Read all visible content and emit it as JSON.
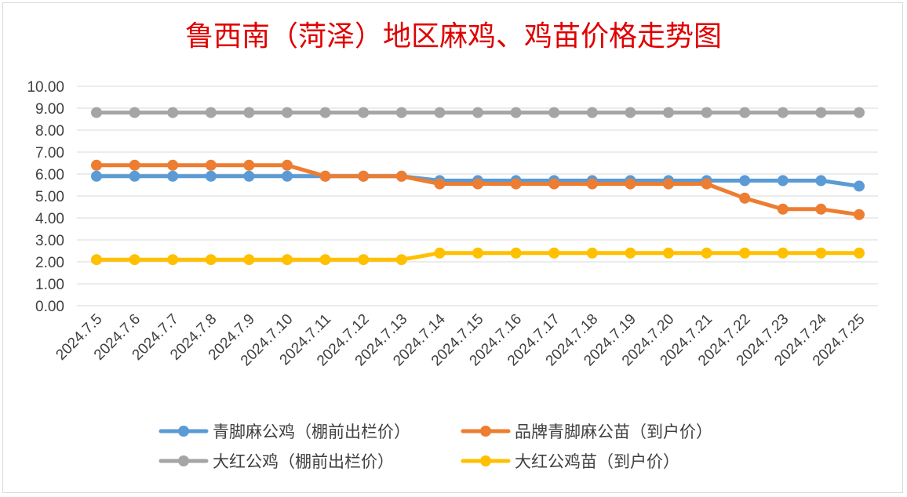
{
  "chart_data": {
    "type": "line",
    "title": "鲁西南（菏泽）地区麻鸡、鸡苗价格走势图",
    "xlabel": "",
    "ylabel": "",
    "ylim": [
      0,
      10
    ],
    "ytick_step": 1,
    "ytick_labels": [
      "0.00",
      "1.00",
      "2.00",
      "3.00",
      "4.00",
      "5.00",
      "6.00",
      "7.00",
      "8.00",
      "9.00",
      "10.00"
    ],
    "grid": true,
    "legend_position": "bottom",
    "categories": [
      "2024.7.5",
      "2024.7.6",
      "2024.7.7",
      "2024.7.8",
      "2024.7.9",
      "2024.7.10",
      "2024.7.11",
      "2024.7.12",
      "2024.7.13",
      "2024.7.14",
      "2024.7.15",
      "2024.7.16",
      "2024.7.17",
      "2024.7.18",
      "2024.7.19",
      "2024.7.20",
      "2024.7.21",
      "2024.7.22",
      "2024.7.23",
      "2024.7.24",
      "2024.7.25"
    ],
    "series": [
      {
        "name": "青脚麻公鸡（棚前出栏价）",
        "color": "#5b9bd5",
        "values": [
          5.9,
          5.9,
          5.9,
          5.9,
          5.9,
          5.9,
          5.9,
          5.9,
          5.9,
          5.7,
          5.7,
          5.7,
          5.7,
          5.7,
          5.7,
          5.7,
          5.7,
          5.7,
          5.7,
          5.7,
          5.45
        ]
      },
      {
        "name": "品牌青脚麻公苗（到户价）",
        "color": "#ed7d31",
        "values": [
          6.4,
          6.4,
          6.4,
          6.4,
          6.4,
          6.4,
          5.9,
          5.9,
          5.9,
          5.55,
          5.55,
          5.55,
          5.55,
          5.55,
          5.55,
          5.55,
          5.55,
          4.9,
          4.4,
          4.4,
          4.15
        ]
      },
      {
        "name": "大红公鸡（棚前出栏价）",
        "color": "#a5a5a5",
        "values": [
          8.8,
          8.8,
          8.8,
          8.8,
          8.8,
          8.8,
          8.8,
          8.8,
          8.8,
          8.8,
          8.8,
          8.8,
          8.8,
          8.8,
          8.8,
          8.8,
          8.8,
          8.8,
          8.8,
          8.8,
          8.8
        ]
      },
      {
        "name": "大红公鸡苗（到户价）",
        "color": "#ffc000",
        "values": [
          2.1,
          2.1,
          2.1,
          2.1,
          2.1,
          2.1,
          2.1,
          2.1,
          2.1,
          2.4,
          2.4,
          2.4,
          2.4,
          2.4,
          2.4,
          2.4,
          2.4,
          2.4,
          2.4,
          2.4,
          2.4
        ]
      }
    ]
  }
}
